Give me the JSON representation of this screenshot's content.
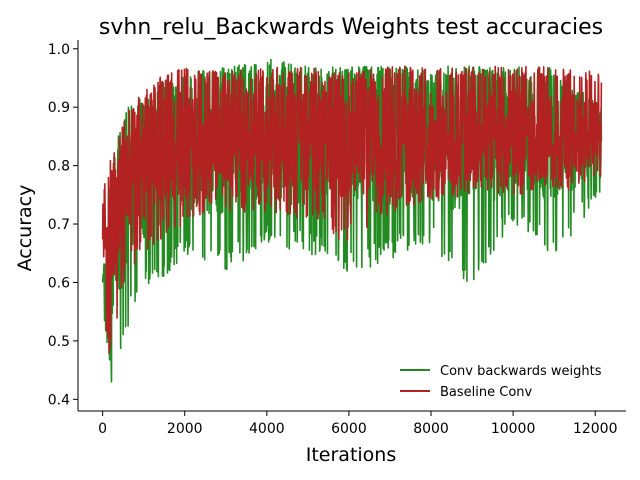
{
  "chart_data": {
    "type": "line",
    "title": "svhn_relu_Backwards Weights test accuracies",
    "xlabel": "Iterations",
    "ylabel": "Accuracy",
    "xlim": [
      -600,
      12750
    ],
    "ylim": [
      0.38,
      1.015
    ],
    "xticks": [
      0,
      2000,
      4000,
      6000,
      8000,
      10000,
      12000
    ],
    "xtick_labels": [
      "0",
      "2000",
      "4000",
      "6000",
      "8000",
      "10000",
      "12000"
    ],
    "yticks": [
      0.4,
      0.5,
      0.6,
      0.7,
      0.8,
      0.9,
      1.0
    ],
    "ytick_labels": [
      "0.4",
      "0.5",
      "0.6",
      "0.7",
      "0.8",
      "0.9",
      "1.0"
    ],
    "grid": false,
    "legend_position": "lower-right",
    "series": [
      {
        "name": "Conv backwards weights",
        "color": "#228b22",
        "x_range": [
          0,
          12150
        ],
        "mean_envelope": {
          "x": [
            0,
            300,
            800,
            2000,
            4000,
            12150
          ],
          "y": [
            0.6,
            0.7,
            0.78,
            0.83,
            0.845,
            0.85
          ]
        },
        "x": [
          0,
          150,
          240,
          320,
          420,
          600,
          900,
          1300,
          2000,
          3000,
          4000,
          5000,
          6000,
          7000,
          8000,
          9000,
          9600,
          10000,
          11000,
          12150
        ],
        "min": [
          0.52,
          0.46,
          0.41,
          0.45,
          0.44,
          0.52,
          0.58,
          0.6,
          0.64,
          0.62,
          0.66,
          0.65,
          0.61,
          0.64,
          0.66,
          0.58,
          0.66,
          0.7,
          0.64,
          0.75
        ],
        "max": [
          0.6,
          0.75,
          0.8,
          0.84,
          0.86,
          0.9,
          0.92,
          0.94,
          0.96,
          0.97,
          0.985,
          0.97,
          0.97,
          0.97,
          0.97,
          0.97,
          0.97,
          0.97,
          0.97,
          0.9
        ]
      },
      {
        "name": "Baseline Conv",
        "color": "#b22222",
        "x_range": [
          0,
          12150
        ],
        "mean_envelope": {
          "x": [
            0,
            300,
            800,
            2000,
            4000,
            12150
          ],
          "y": [
            0.62,
            0.72,
            0.8,
            0.84,
            0.85,
            0.85
          ]
        },
        "x": [
          0,
          150,
          240,
          320,
          420,
          600,
          900,
          1300,
          2000,
          3000,
          4000,
          5000,
          6000,
          7000,
          8000,
          9000,
          9600,
          10000,
          11000,
          12150
        ],
        "min": [
          0.59,
          0.47,
          0.5,
          0.5,
          0.55,
          0.62,
          0.64,
          0.66,
          0.7,
          0.72,
          0.72,
          0.7,
          0.66,
          0.72,
          0.74,
          0.75,
          0.75,
          0.75,
          0.75,
          0.77
        ],
        "max": [
          0.75,
          0.83,
          0.8,
          0.84,
          0.86,
          0.9,
          0.92,
          0.95,
          0.97,
          0.96,
          0.97,
          0.97,
          0.96,
          0.97,
          0.97,
          0.97,
          0.97,
          0.97,
          0.97,
          0.96
        ]
      }
    ]
  }
}
